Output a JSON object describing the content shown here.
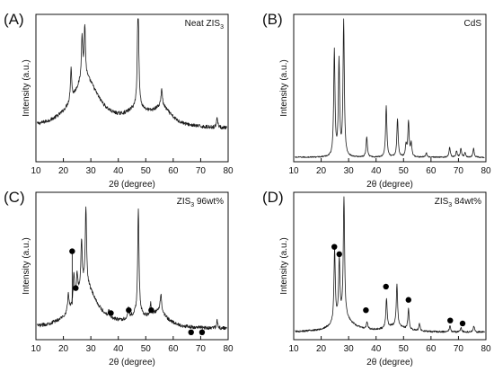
{
  "figure": {
    "x_label": "2θ (degree)",
    "y_label": "Intensity (a.u.)"
  },
  "chart_data": [
    {
      "type": "line",
      "panel": "(A)",
      "legend": {
        "prefix": "Neat ZIS",
        "subscript": "3",
        "suffix": ""
      },
      "xlim": [
        10,
        80
      ],
      "x_ticks": [
        "10",
        "20",
        "30",
        "40",
        "50",
        "60",
        "70",
        "80"
      ],
      "grid": false,
      "baseline": 0.22,
      "noise": 0.012,
      "background": [
        {
          "center": 28,
          "height": 0.34,
          "width": 6
        },
        {
          "center": 47,
          "height": 0.1,
          "width": 5
        },
        {
          "center": 56,
          "height": 0.12,
          "width": 4
        }
      ],
      "peaks": [
        {
          "x": 22.8,
          "height": 0.22
        },
        {
          "x": 26.8,
          "height": 0.3
        },
        {
          "x": 27.8,
          "height": 0.35
        },
        {
          "x": 47.2,
          "height": 0.8
        },
        {
          "x": 55.8,
          "height": 0.12
        },
        {
          "x": 76.0,
          "height": 0.07
        }
      ],
      "markers": []
    },
    {
      "type": "line",
      "panel": "(B)",
      "legend": {
        "prefix": "CdS",
        "subscript": "",
        "suffix": ""
      },
      "xlim": [
        10,
        80
      ],
      "x_ticks": [
        "10",
        "20",
        "30",
        "40",
        "50",
        "60",
        "70",
        "80"
      ],
      "grid": false,
      "baseline": 0.03,
      "noise": 0.004,
      "background": [],
      "peaks": [
        {
          "x": 24.8,
          "height": 0.72
        },
        {
          "x": 26.5,
          "height": 0.64
        },
        {
          "x": 28.2,
          "height": 0.92
        },
        {
          "x": 36.6,
          "height": 0.14
        },
        {
          "x": 43.7,
          "height": 0.35
        },
        {
          "x": 47.8,
          "height": 0.26
        },
        {
          "x": 50.9,
          "height": 0.08
        },
        {
          "x": 51.8,
          "height": 0.24
        },
        {
          "x": 52.8,
          "height": 0.09
        },
        {
          "x": 58.3,
          "height": 0.03
        },
        {
          "x": 66.8,
          "height": 0.07
        },
        {
          "x": 69.3,
          "height": 0.04
        },
        {
          "x": 70.9,
          "height": 0.06
        },
        {
          "x": 72.4,
          "height": 0.03
        },
        {
          "x": 75.5,
          "height": 0.06
        }
      ],
      "markers": []
    },
    {
      "type": "line",
      "panel": "(C)",
      "legend": {
        "prefix": "ZIS",
        "subscript": "3",
        "suffix": " 96wt%"
      },
      "xlim": [
        10,
        80
      ],
      "x_ticks": [
        "10",
        "20",
        "30",
        "40",
        "50",
        "60",
        "70",
        "80"
      ],
      "grid": false,
      "baseline": 0.07,
      "noise": 0.012,
      "background": [
        {
          "center": 28,
          "height": 0.3,
          "width": 5
        },
        {
          "center": 47,
          "height": 0.07,
          "width": 4
        },
        {
          "center": 55,
          "height": 0.1,
          "width": 3.5
        }
      ],
      "peaks": [
        {
          "x": 21.8,
          "height": 0.12
        },
        {
          "x": 23.8,
          "height": 0.2
        },
        {
          "x": 25.0,
          "height": 0.15
        },
        {
          "x": 26.6,
          "height": 0.32
        },
        {
          "x": 28.2,
          "height": 0.52
        },
        {
          "x": 36.6,
          "height": 0.05
        },
        {
          "x": 43.7,
          "height": 0.07
        },
        {
          "x": 47.3,
          "height": 0.72
        },
        {
          "x": 51.8,
          "height": 0.08
        },
        {
          "x": 55.5,
          "height": 0.12
        },
        {
          "x": 76.0,
          "height": 0.05
        }
      ],
      "markers": [
        {
          "x": 23.2,
          "y": 0.6,
          "line_to": 0.24
        },
        {
          "x": 24.5,
          "y": 0.35
        },
        {
          "x": 37.3,
          "y": 0.18
        },
        {
          "x": 43.8,
          "y": 0.2
        },
        {
          "x": 52.0,
          "y": 0.2
        },
        {
          "x": 66.5,
          "y": 0.05
        },
        {
          "x": 70.5,
          "y": 0.05
        }
      ]
    },
    {
      "type": "line",
      "panel": "(D)",
      "legend": {
        "prefix": "ZIS",
        "subscript": "3",
        "suffix": " 84wt%"
      },
      "xlim": [
        10,
        80
      ],
      "x_ticks": [
        "10",
        "20",
        "30",
        "40",
        "50",
        "60",
        "70",
        "80"
      ],
      "grid": false,
      "baseline": 0.05,
      "noise": 0.006,
      "background": [
        {
          "center": 28,
          "height": 0.1,
          "width": 4
        },
        {
          "center": 47,
          "height": 0.04,
          "width": 4
        }
      ],
      "peaks": [
        {
          "x": 24.9,
          "height": 0.5
        },
        {
          "x": 26.6,
          "height": 0.4
        },
        {
          "x": 28.3,
          "height": 0.82
        },
        {
          "x": 36.7,
          "height": 0.05
        },
        {
          "x": 43.8,
          "height": 0.2
        },
        {
          "x": 47.6,
          "height": 0.28
        },
        {
          "x": 51.8,
          "height": 0.14
        },
        {
          "x": 55.8,
          "height": 0.05
        },
        {
          "x": 66.9,
          "height": 0.04
        },
        {
          "x": 70.9,
          "height": 0.03
        },
        {
          "x": 75.6,
          "height": 0.04
        }
      ],
      "markers": [
        {
          "x": 24.8,
          "y": 0.63
        },
        {
          "x": 26.6,
          "y": 0.58
        },
        {
          "x": 36.3,
          "y": 0.2
        },
        {
          "x": 43.6,
          "y": 0.36
        },
        {
          "x": 51.8,
          "y": 0.27
        },
        {
          "x": 67.0,
          "y": 0.13
        },
        {
          "x": 71.5,
          "y": 0.11
        }
      ]
    }
  ]
}
